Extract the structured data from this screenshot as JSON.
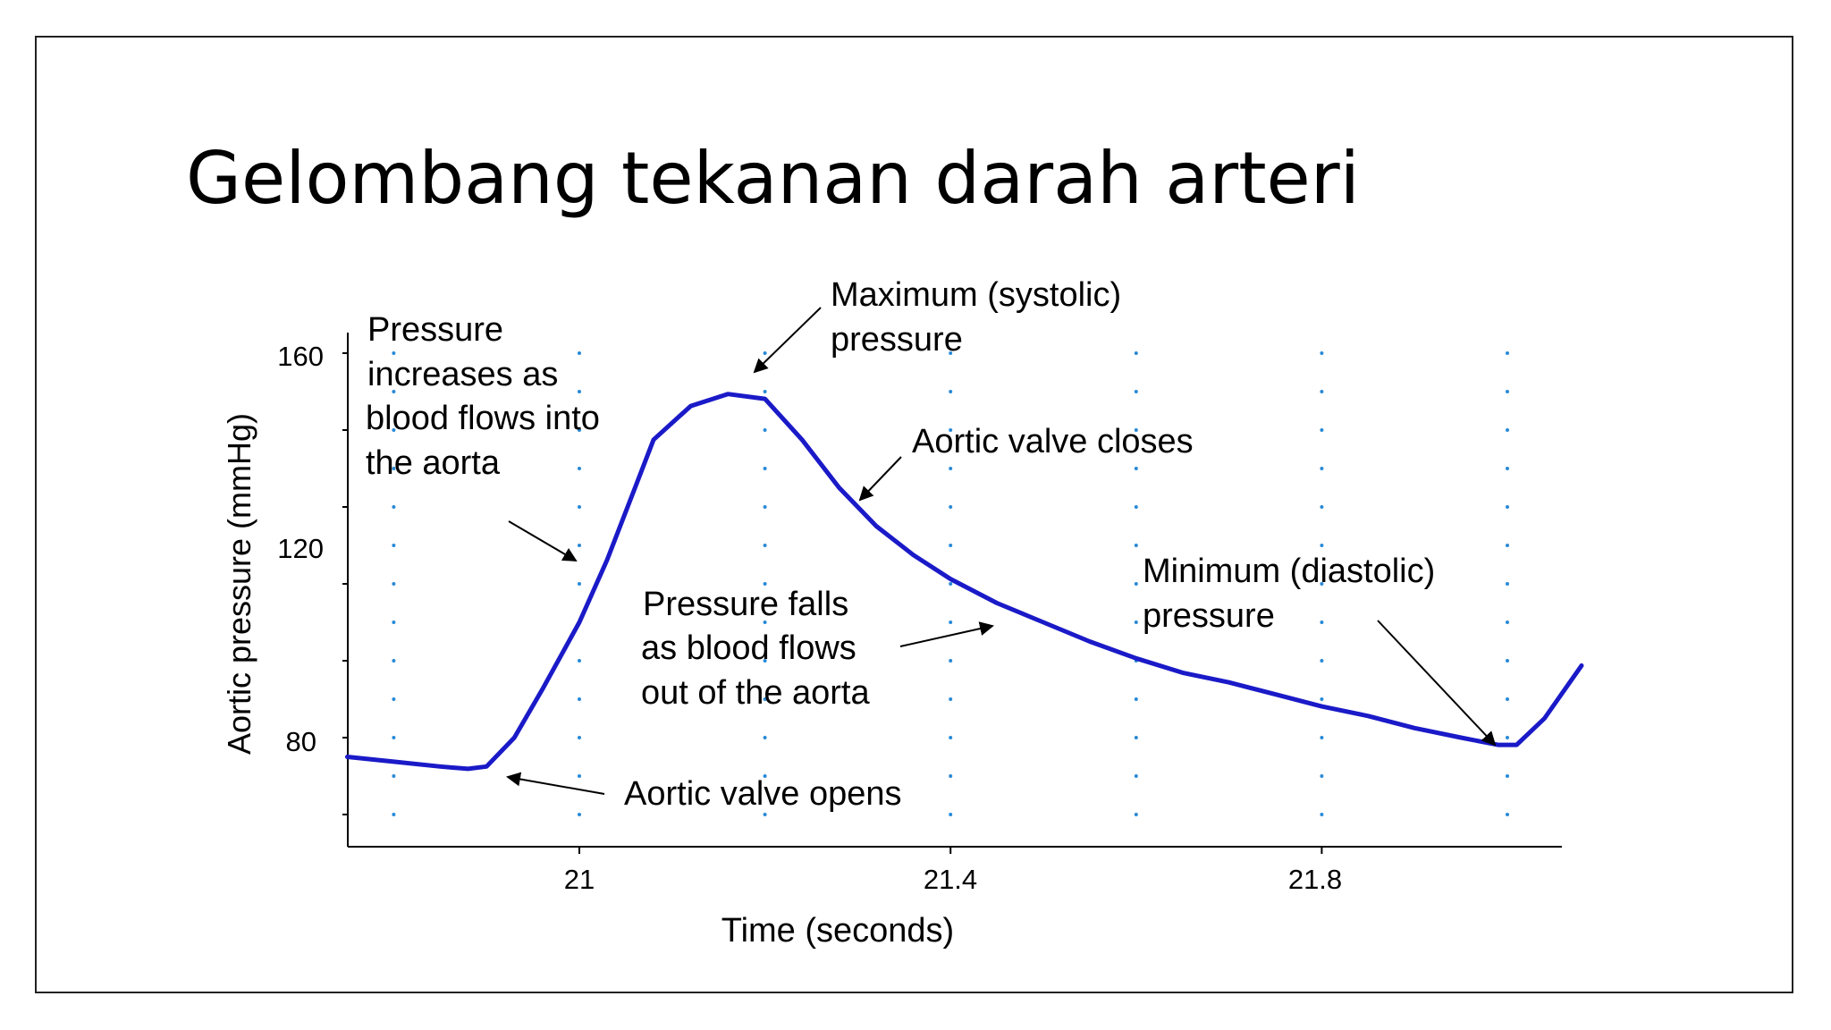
{
  "slide": {
    "title": "Gelombang tekanan darah arteri"
  },
  "colors": {
    "curve": "#1a1ac8",
    "grid_dots": "#2a8ad6",
    "text": "#000000"
  },
  "chart_data": {
    "type": "line",
    "title": "",
    "xlabel": "Time (seconds)",
    "ylabel": "Aortic pressure (mmHg)",
    "xlim": [
      20.75,
      22.08
    ],
    "ylim": [
      58,
      163
    ],
    "x_ticks": [
      21,
      21.4,
      21.8
    ],
    "x_tick_labels": [
      "21",
      "21.4",
      "21.8"
    ],
    "y_ticks": [
      80,
      120,
      160
    ],
    "y_tick_labels": [
      "80",
      "120",
      "160"
    ],
    "grid": "dotted",
    "legend": "none",
    "series": [
      {
        "x": [
          20.75,
          20.8,
          20.85,
          20.88,
          20.9,
          20.93,
          20.96,
          21.0,
          21.03,
          21.06,
          21.08,
          21.12,
          21.16,
          21.2,
          21.24,
          21.28,
          21.32,
          21.36,
          21.4,
          21.45,
          21.5,
          21.55,
          21.6,
          21.65,
          21.7,
          21.75,
          21.8,
          21.85,
          21.9,
          21.95,
          21.99,
          22.01,
          22.04,
          22.08
        ],
        "y": [
          76,
          75,
          74,
          73.5,
          74,
          80,
          90,
          104,
          117,
          132,
          142,
          149,
          151.5,
          150.5,
          142,
          132,
          124,
          118,
          113,
          108,
          104,
          100,
          96.5,
          93.5,
          91.5,
          89,
          86.5,
          84.5,
          82,
          80,
          78.5,
          78.5,
          84,
          95
        ]
      }
    ],
    "annotations": [
      {
        "lines": [
          "Maximum (systolic)",
          "pressure"
        ]
      },
      {
        "lines": [
          "Pressure",
          "increases as",
          "blood flows into",
          "the aorta"
        ]
      },
      {
        "lines": [
          "Aortic valve closes"
        ]
      },
      {
        "lines": [
          "Minimum (diastolic)",
          "pressure"
        ]
      },
      {
        "lines": [
          "Pressure falls",
          "as blood flows",
          "out of the aorta"
        ]
      },
      {
        "lines": [
          "Aortic valve opens"
        ]
      }
    ]
  }
}
